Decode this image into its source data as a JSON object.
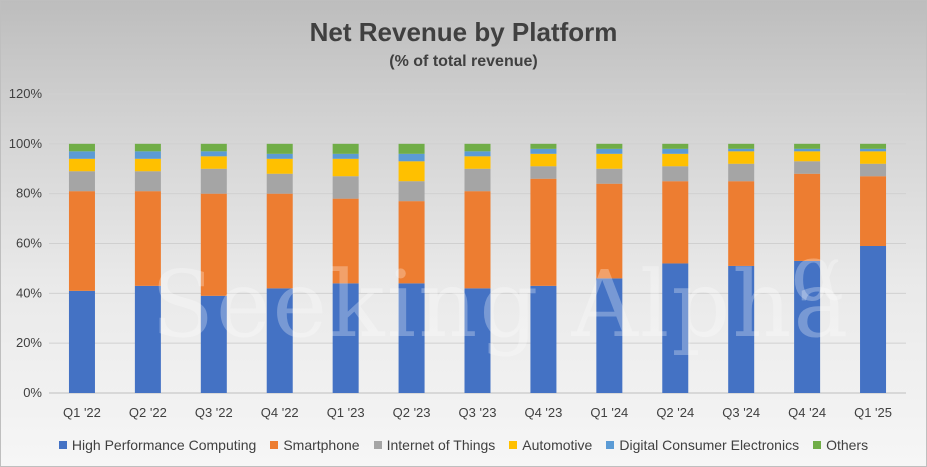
{
  "chart_data": {
    "type": "bar",
    "stacked": true,
    "title": "Net Revenue by Platform",
    "subtitle": "(% of total revenue)",
    "categories": [
      "Q1 '22",
      "Q2 '22",
      "Q3 '22",
      "Q4 '22",
      "Q1 '23",
      "Q2 '23",
      "Q3 '23",
      "Q4 '23",
      "Q1 '24",
      "Q2 '24",
      "Q3 '24",
      "Q4 '24",
      "Q1 '25"
    ],
    "ylim": [
      0,
      120
    ],
    "yticks": [
      "0%",
      "20%",
      "40%",
      "60%",
      "80%",
      "100%",
      "120%"
    ],
    "grid": true,
    "legend_position": "bottom",
    "series": [
      {
        "name": "High Performance Computing",
        "color": "#4472C4",
        "values": [
          41,
          43,
          39,
          42,
          44,
          44,
          42,
          43,
          46,
          52,
          51,
          53,
          59
        ]
      },
      {
        "name": "Smartphone",
        "color": "#ED7D31",
        "values": [
          40,
          38,
          41,
          38,
          34,
          33,
          39,
          43,
          38,
          33,
          34,
          35,
          28
        ]
      },
      {
        "name": "Internet of Things",
        "color": "#A5A5A5",
        "values": [
          8,
          8,
          10,
          8,
          9,
          8,
          9,
          5,
          6,
          6,
          7,
          5,
          5
        ]
      },
      {
        "name": "Automotive",
        "color": "#FFC000",
        "values": [
          5,
          5,
          5,
          6,
          7,
          8,
          5,
          5,
          6,
          5,
          5,
          4,
          5
        ]
      },
      {
        "name": "Digital Consumer Electronics",
        "color": "#5B9BD5",
        "values": [
          3,
          3,
          2,
          2,
          2,
          3,
          2,
          2,
          2,
          2,
          1,
          1,
          1
        ]
      },
      {
        "name": "Others",
        "color": "#70AD47",
        "values": [
          3,
          3,
          3,
          4,
          4,
          4,
          3,
          2,
          2,
          2,
          2,
          2,
          2
        ]
      }
    ]
  },
  "watermark": {
    "text": "Seeking Alpha",
    "symbol": "α"
  }
}
